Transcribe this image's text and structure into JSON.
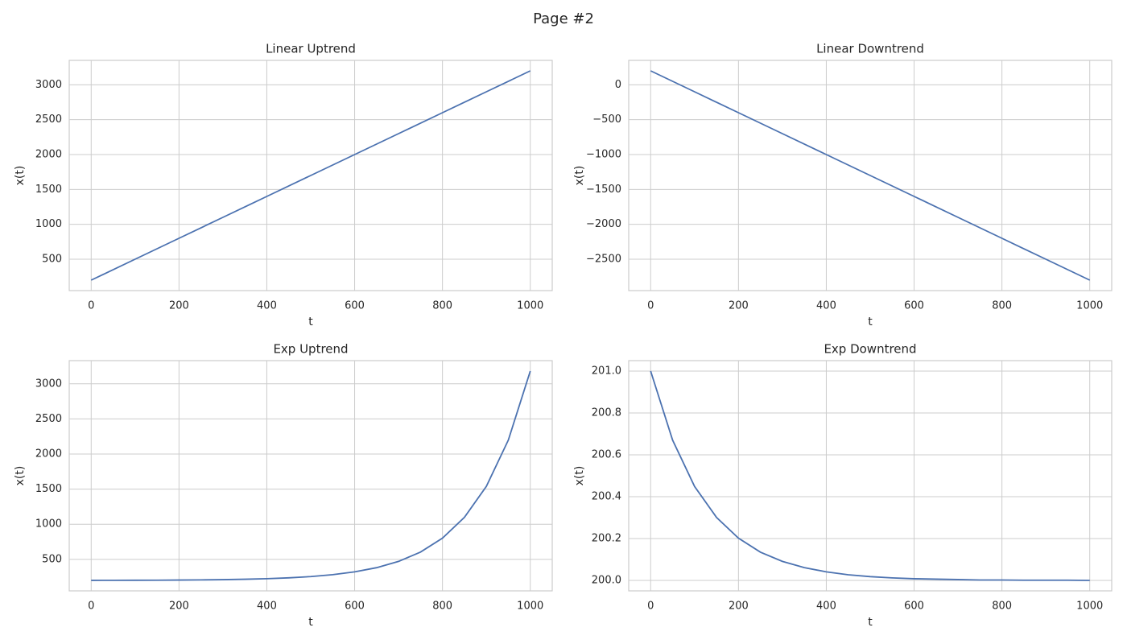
{
  "title": "Page #2",
  "chart_data": [
    {
      "type": "line",
      "title": "Linear Uptrend",
      "xlabel": "t",
      "ylabel": "x(t)",
      "color": "#4c72b0",
      "grid": true,
      "x": [
        0,
        100,
        200,
        300,
        400,
        500,
        600,
        700,
        800,
        900,
        1000
      ],
      "values": [
        200,
        500,
        800,
        1100,
        1400,
        1700,
        2000,
        2300,
        2600,
        2900,
        3200
      ],
      "xlim": [
        -50,
        1050
      ],
      "ylim": [
        50,
        3350
      ],
      "xticks": [
        0,
        200,
        400,
        600,
        800,
        1000
      ],
      "yticks": [
        500,
        1000,
        1500,
        2000,
        2500,
        3000
      ]
    },
    {
      "type": "line",
      "title": "Linear Downtrend",
      "xlabel": "t",
      "ylabel": "x(t)",
      "color": "#4c72b0",
      "grid": true,
      "x": [
        0,
        100,
        200,
        300,
        400,
        500,
        600,
        700,
        800,
        900,
        1000
      ],
      "values": [
        200,
        -100,
        -400,
        -700,
        -1000,
        -1300,
        -1600,
        -1900,
        -2200,
        -2500,
        -2800
      ],
      "xlim": [
        -50,
        1050
      ],
      "ylim": [
        -2950,
        350
      ],
      "xticks": [
        0,
        200,
        400,
        600,
        800,
        1000
      ],
      "yticks": [
        {
          "value": -2500,
          "label": "−2500"
        },
        {
          "value": -2000,
          "label": "−2000"
        },
        {
          "value": -1500,
          "label": "−1500"
        },
        {
          "value": -1000,
          "label": "−1000"
        },
        {
          "value": -500,
          "label": "−500"
        },
        0
      ]
    },
    {
      "type": "line",
      "title": "Exp Uptrend",
      "xlabel": "t",
      "ylabel": "x(t)",
      "color": "#4c72b0",
      "grid": true,
      "x": [
        0,
        50,
        100,
        150,
        200,
        250,
        300,
        350,
        400,
        450,
        500,
        550,
        600,
        650,
        700,
        750,
        800,
        850,
        900,
        950,
        1000
      ],
      "values": [
        201,
        201.5,
        202.2,
        203.3,
        205,
        207.4,
        211,
        216.4,
        224.5,
        236.6,
        254.6,
        281.5,
        321.5,
        381.3,
        470.4,
        603.4,
        801.8,
        1097.8,
        1539.4,
        2198.2,
        3181
      ],
      "xlim": [
        -50,
        1050
      ],
      "ylim": [
        51,
        3330
      ],
      "xticks": [
        0,
        200,
        400,
        600,
        800,
        1000
      ],
      "yticks": [
        500,
        1000,
        1500,
        2000,
        2500,
        3000
      ]
    },
    {
      "type": "line",
      "title": "Exp Downtrend",
      "xlabel": "t",
      "ylabel": "x(t)",
      "color": "#4c72b0",
      "grid": true,
      "x": [
        0,
        50,
        100,
        150,
        200,
        250,
        300,
        350,
        400,
        450,
        500,
        550,
        600,
        650,
        700,
        750,
        800,
        850,
        900,
        950,
        1000
      ],
      "values": [
        201,
        200.67,
        200.449,
        200.301,
        200.202,
        200.135,
        200.091,
        200.061,
        200.041,
        200.027,
        200.018,
        200.012,
        200.008,
        200.006,
        200.004,
        200.002,
        200.002,
        200.001,
        200.001,
        200.001,
        200.0
      ],
      "xlim": [
        -50,
        1050
      ],
      "ylim": [
        199.95,
        201.05
      ],
      "xticks": [
        0,
        200,
        400,
        600,
        800,
        1000
      ],
      "yticks": [
        {
          "value": 200,
          "label": "200.0"
        },
        200.2,
        200.4,
        200.6,
        200.8,
        {
          "value": 201,
          "label": "201.0"
        }
      ]
    }
  ]
}
